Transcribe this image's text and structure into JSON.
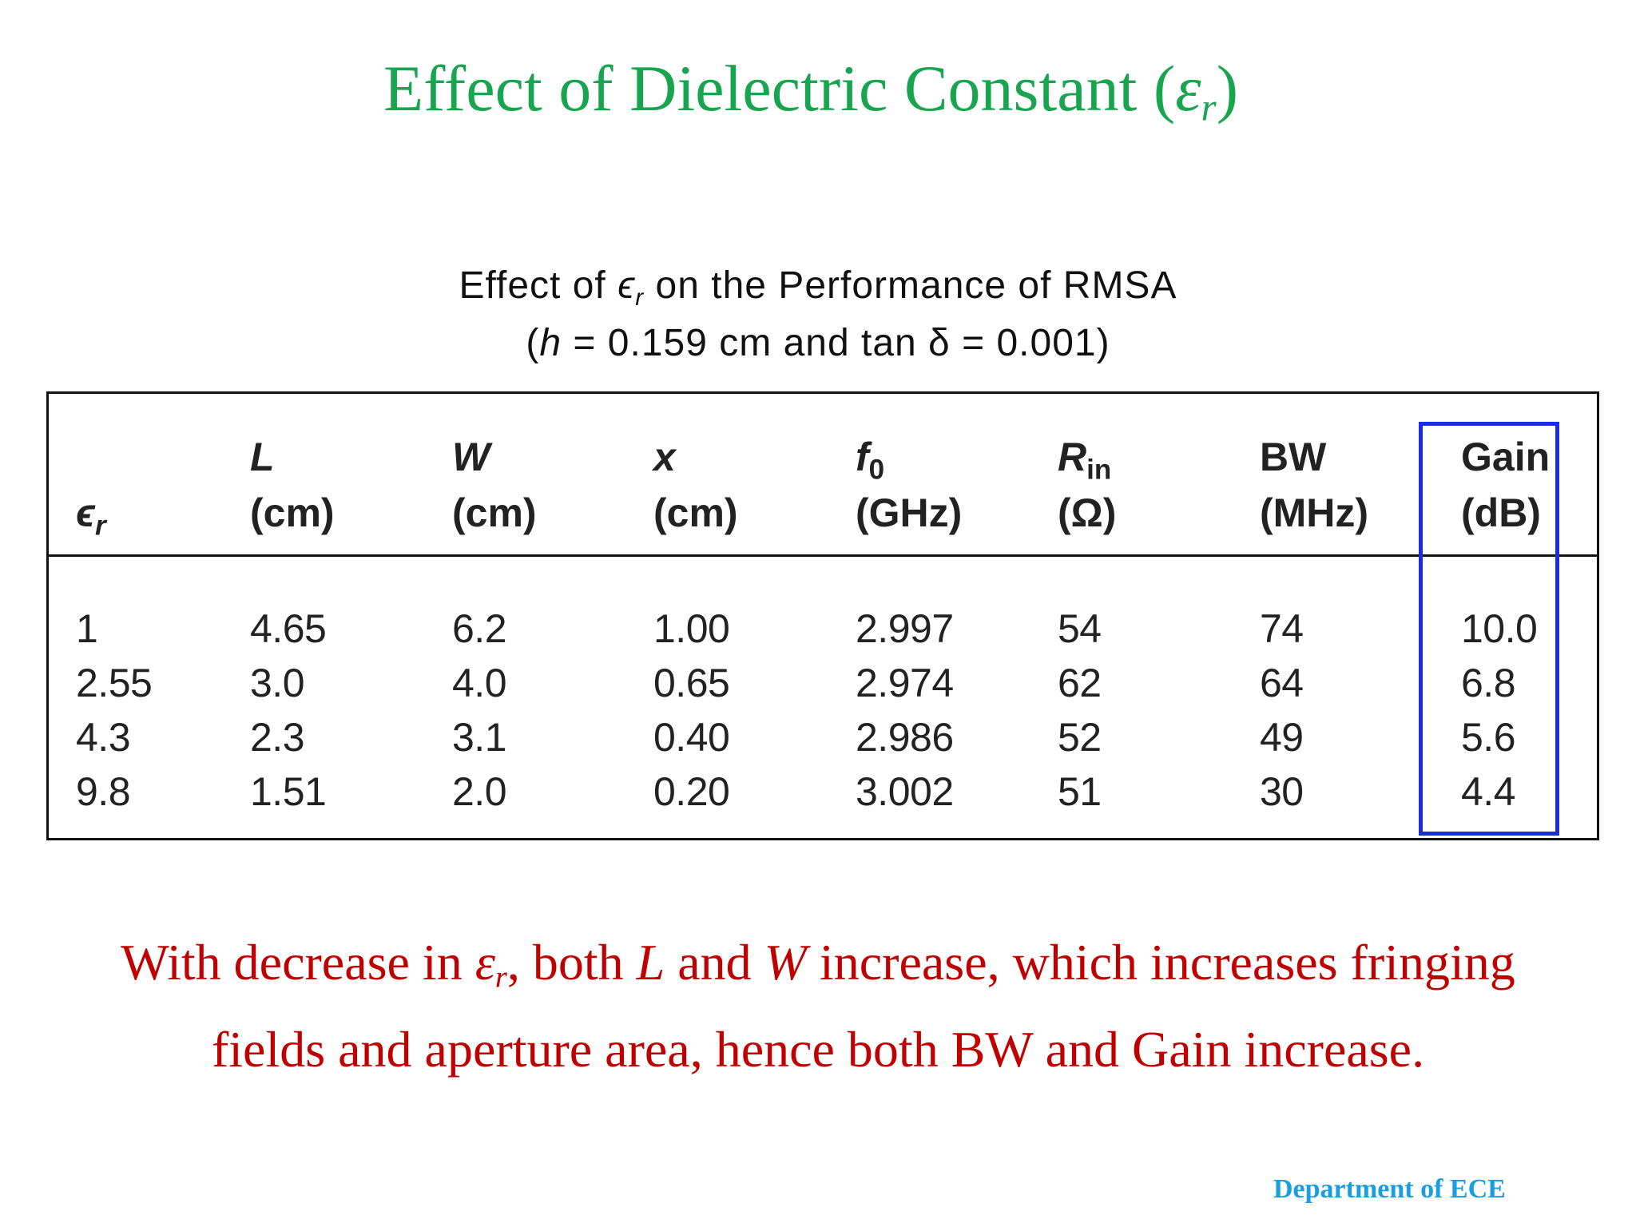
{
  "slide": {
    "title_prefix": "Effect of Dielectric Constant (",
    "title_symbol": "ε",
    "title_symbol_sub": "r",
    "title_suffix": ")"
  },
  "caption": {
    "line1_prefix": "Effect of ",
    "line1_symbol": "ϵ",
    "line1_symbol_sub": "r",
    "line1_suffix": " on the Performance of RMSA",
    "line2_prefix": "(",
    "line2_h": "h",
    "line2_rest": " = 0.159 cm and tan δ = 0.001)"
  },
  "table": {
    "er_symbol": "ϵ",
    "er_sub": "r",
    "headers": [
      {
        "sym": "L",
        "sub": "",
        "unit": "(cm)"
      },
      {
        "sym": "W",
        "sub": "",
        "unit": "(cm)"
      },
      {
        "sym": "x",
        "sub": "",
        "unit": "(cm)"
      },
      {
        "sym": "f",
        "sub": "0",
        "unit": "(GHz)"
      },
      {
        "sym": "R",
        "sub": "in",
        "unit": "(Ω)"
      },
      {
        "sym": "BW",
        "sub": "",
        "unit": "(MHz)"
      },
      {
        "sym": "Gain",
        "sub": "",
        "unit": "(dB)"
      }
    ],
    "rows": [
      [
        "1",
        "4.65",
        "6.2",
        "1.00",
        "2.997",
        "54",
        "74",
        "10.0"
      ],
      [
        "2.55",
        "3.0",
        "4.0",
        "0.65",
        "2.974",
        "62",
        "64",
        "6.8"
      ],
      [
        "4.3",
        "2.3",
        "3.1",
        "0.40",
        "2.986",
        "52",
        "49",
        "5.6"
      ],
      [
        "9.8",
        "1.51",
        "2.0",
        "0.20",
        "3.002",
        "51",
        "30",
        "4.4"
      ]
    ],
    "highlight_color": "#1a2ee0"
  },
  "conclusion": {
    "p1": "With decrease in ",
    "sym": "ε",
    "sym_sub": "r",
    "p2": ", both ",
    "L": "L",
    "p3": " and ",
    "W": "W",
    "p4": " increase, which increases fringing",
    "line2": "fields and aperture area, hence both BW and Gain increase."
  },
  "footer": {
    "text": "Department of ECE"
  },
  "colors": {
    "title": "#19a550",
    "conclusion": "#c00000",
    "footer": "#1a9ee0"
  }
}
